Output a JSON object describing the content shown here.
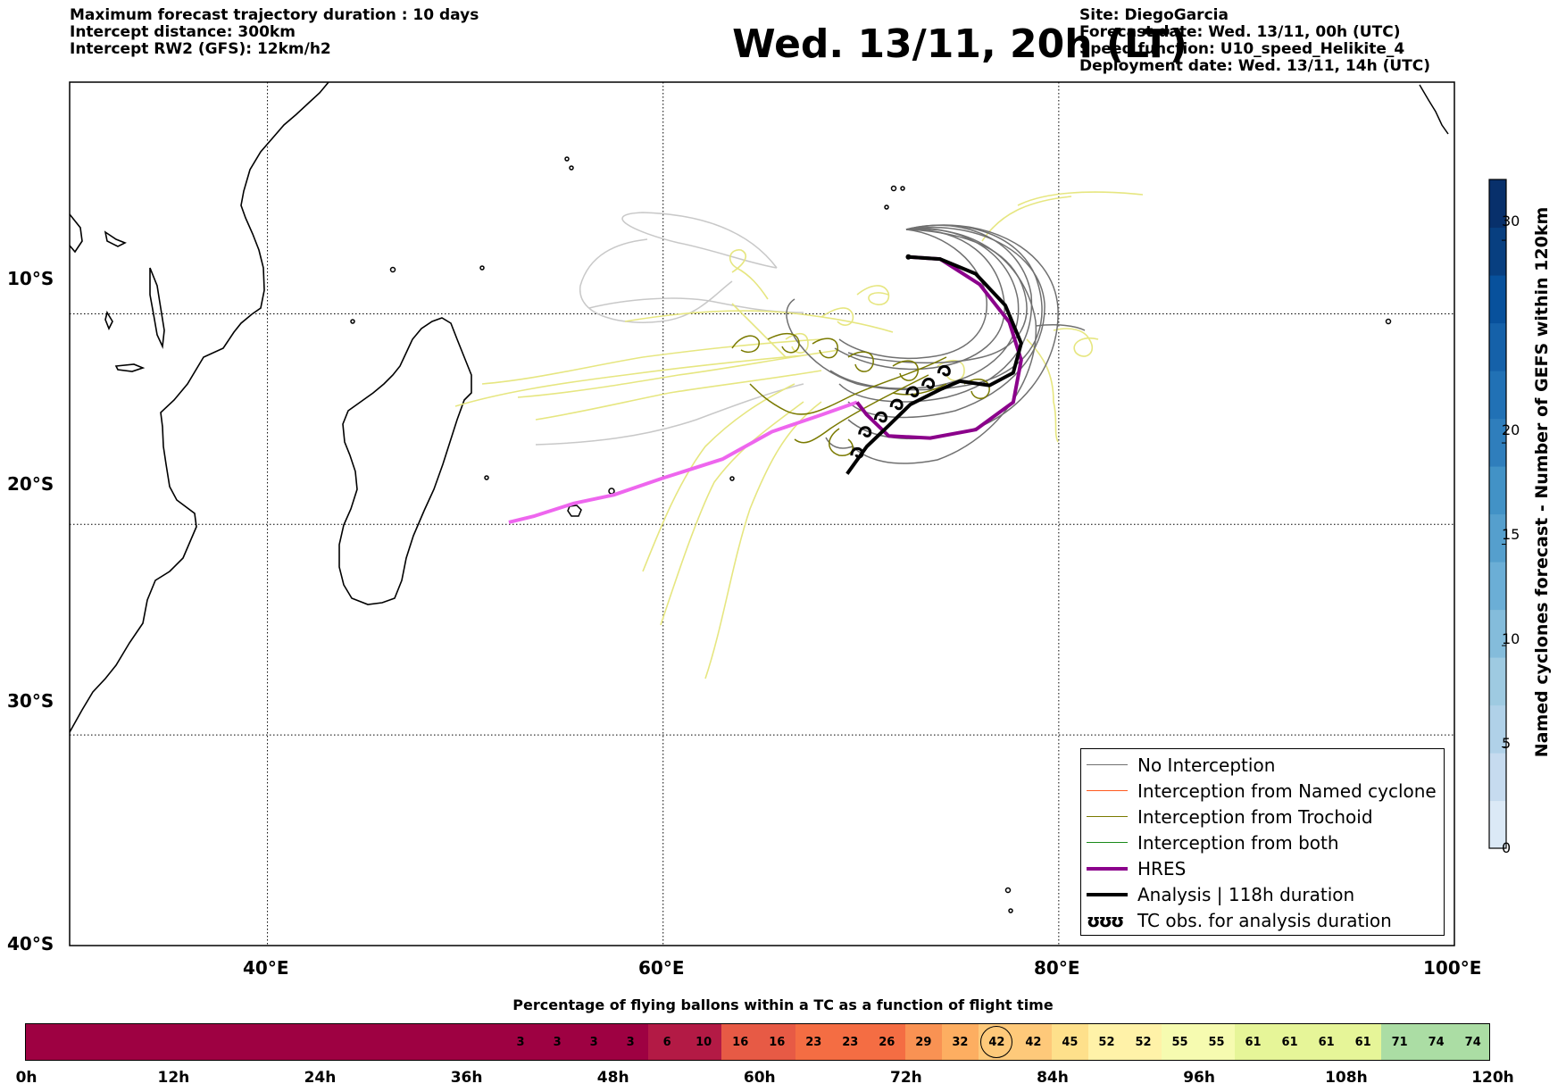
{
  "header": {
    "left_lines": [
      "Maximum forecast trajectory duration : 10 days",
      "Intercept distance: 300km",
      "Intercept RW2 (GFS):  12km/h2"
    ],
    "title": "Wed. 13/11, 20h (LT)",
    "right_lines": [
      "Site: DiegoGarcia",
      "Forecast date: Wed. 13/11, 00h (UTC)",
      "Speed function: U10_speed_Helikite_4",
      "Deployment date: Wed. 13/11, 14h (UTC)"
    ]
  },
  "map": {
    "lon_range": [
      30,
      100
    ],
    "lat_range": [
      -40,
      1
    ],
    "lat_ticks": [
      {
        "value": -10,
        "label": "10°S"
      },
      {
        "value": -20,
        "label": "20°S"
      },
      {
        "value": -30,
        "label": "30°S"
      },
      {
        "value": -40,
        "label": "40°S"
      }
    ],
    "lon_ticks": [
      {
        "value": 40,
        "label": "40°E"
      },
      {
        "value": 60,
        "label": "60°E"
      },
      {
        "value": 80,
        "label": "80°E"
      },
      {
        "value": 100,
        "label": "100°E"
      }
    ],
    "gridlines": "dotted",
    "colors": {
      "no_interception": "#707070",
      "named_cyclone": "#ff5a1f",
      "trochoid": "#7a7a00",
      "both": "#1a8a1a",
      "hres": "#8b008b",
      "hres_extension": "#ee66ee",
      "analysis": "#000000",
      "ensemble_yellow": "#e6e680",
      "ensemble_gray": "#c8c8c8"
    },
    "site": {
      "name": "DiegoGarcia",
      "lon": 72.4,
      "lat": -7.3
    },
    "hres_track": [
      [
        72.4,
        -7.3
      ],
      [
        74,
        -7.4
      ],
      [
        76,
        -8.6
      ],
      [
        77.5,
        -10.4
      ],
      [
        78.1,
        -12.2
      ],
      [
        77.7,
        -14.2
      ],
      [
        75.8,
        -15.5
      ],
      [
        73.5,
        -15.9
      ],
      [
        71.4,
        -15.8
      ],
      [
        70.3,
        -14.8
      ],
      [
        69.8,
        -14.2
      ]
    ],
    "hres_extension_track": [
      [
        69.8,
        -14.2
      ],
      [
        68,
        -14.8
      ],
      [
        65.5,
        -15.6
      ],
      [
        63,
        -16.9
      ],
      [
        60,
        -17.8
      ],
      [
        57.5,
        -18.6
      ],
      [
        55.5,
        -19
      ],
      [
        53.5,
        -19.6
      ],
      [
        52.2,
        -19.9
      ]
    ],
    "analysis_track": [
      [
        72.4,
        -7.3
      ],
      [
        74,
        -7.4
      ],
      [
        75.8,
        -8.1
      ],
      [
        77.3,
        -9.6
      ],
      [
        78.1,
        -11.4
      ],
      [
        77.7,
        -12.8
      ],
      [
        76.5,
        -13.4
      ],
      [
        75,
        -13.2
      ],
      [
        74,
        -13.6
      ],
      [
        72.5,
        -14.3
      ],
      [
        71.3,
        -15.4
      ],
      [
        70.3,
        -16.3
      ],
      [
        69.3,
        -17.6
      ]
    ],
    "tc_observations": [
      [
        74.2,
        -12.7
      ],
      [
        73.4,
        -13.3
      ],
      [
        72.6,
        -13.7
      ],
      [
        71.8,
        -14.3
      ],
      [
        71,
        -14.9
      ],
      [
        70.2,
        -15.6
      ],
      [
        69.8,
        -16.6
      ]
    ]
  },
  "legend": {
    "items": [
      {
        "label": "No Interception",
        "color": "#707070",
        "style": "thin"
      },
      {
        "label": "Interception from Named cyclone",
        "color": "#ff5a1f",
        "style": "thin"
      },
      {
        "label": "Interception from Trochoid",
        "color": "#7a7a00",
        "style": "thin"
      },
      {
        "label": "Interception from both",
        "color": "#1a8a1a",
        "style": "thin"
      },
      {
        "label": "HRES",
        "color": "#8b008b",
        "style": "thick"
      },
      {
        "label": "Analysis | 118h duration",
        "color": "#000000",
        "style": "thick"
      },
      {
        "label": "TC obs. for analysis duration",
        "color": "#000000",
        "style": "symbol"
      }
    ],
    "symbol_glyph": "ʊʊʊ"
  },
  "colorbar": {
    "label": "Named cyclones forecast - Number of GEFS within 120km",
    "range": [
      0,
      33
    ],
    "ticks": [
      {
        "value": 0,
        "label": "0"
      },
      {
        "value": 5,
        "label": "5"
      },
      {
        "value": 10,
        "label": "10"
      },
      {
        "value": 15,
        "label": "15"
      },
      {
        "value": 20,
        "label": "20"
      },
      {
        "value": 30,
        "label": "30"
      }
    ],
    "colors": [
      "#dbe9f6",
      "#c6dbef",
      "#b0d1e8",
      "#9ecae1",
      "#84bcdb",
      "#6baed6",
      "#559fcd",
      "#4292c6",
      "#2f7ebc",
      "#2171b5",
      "#1561a9",
      "#08519c",
      "#083f80",
      "#08306b"
    ]
  },
  "flight_bar": {
    "title": "Percentage of flying ballons within a TC as a function of flight time",
    "start_hours": 0,
    "end_hours": 120,
    "first_value_hour": 39,
    "step_hours": 3,
    "values": [
      3,
      3,
      3,
      3,
      6,
      10,
      16,
      16,
      23,
      23,
      26,
      29,
      32,
      42,
      42,
      45,
      52,
      52,
      55,
      55,
      61,
      61,
      61,
      61,
      71,
      74,
      74
    ],
    "highlight_value": 42,
    "ticks": [
      {
        "value": 0,
        "label": "0h"
      },
      {
        "value": 12,
        "label": "12h"
      },
      {
        "value": 24,
        "label": "24h"
      },
      {
        "value": 36,
        "label": "36h"
      },
      {
        "value": 48,
        "label": "48h"
      },
      {
        "value": 60,
        "label": "60h"
      },
      {
        "value": 72,
        "label": "72h"
      },
      {
        "value": 84,
        "label": "84h"
      },
      {
        "value": 96,
        "label": "96h"
      },
      {
        "value": 108,
        "label": "108h"
      },
      {
        "value": 120,
        "label": "120h"
      }
    ],
    "colors": {
      "empty": "#9e0142",
      "scale": [
        "#9e0142",
        "#b31a45",
        "#d53e4f",
        "#e75a45",
        "#f46d43",
        "#f99253",
        "#fdae61",
        "#fec97a",
        "#fee08b",
        "#fff2a8",
        "#f6fbb0",
        "#e6f598",
        "#d7ef9b",
        "#abdda4",
        "#8fd1a4"
      ]
    }
  }
}
